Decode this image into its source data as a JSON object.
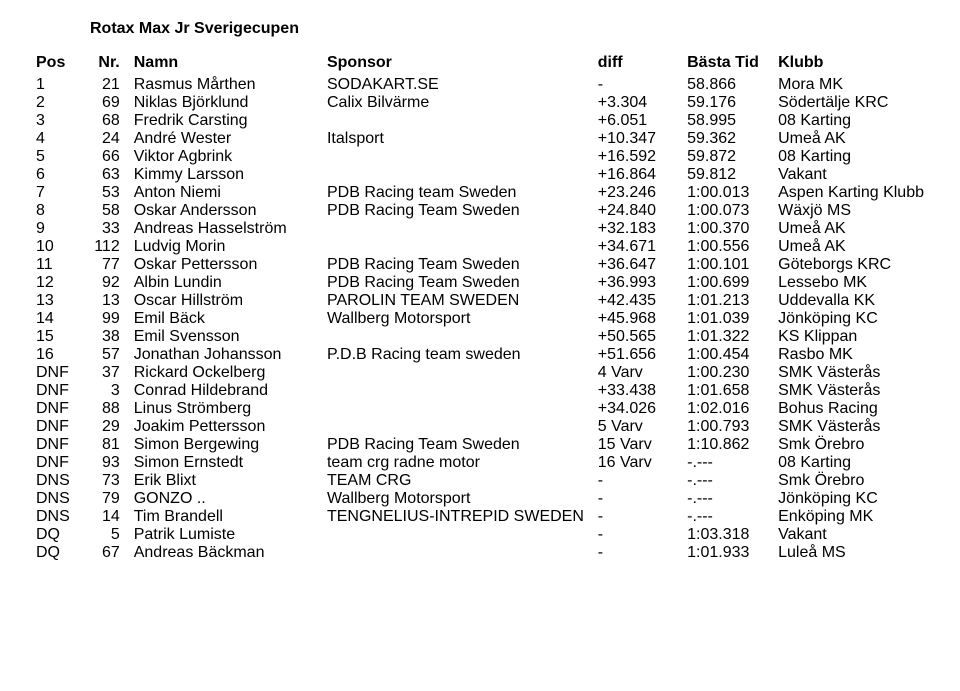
{
  "title": "Rotax Max Jr Sverigecupen",
  "headers": {
    "pos": "Pos",
    "nr": "Nr.",
    "namn": "Namn",
    "sponsor": "Sponsor",
    "diff": "diff",
    "tid": "Bästa Tid",
    "klubb": "Klubb"
  },
  "rows": [
    {
      "pos": "1",
      "nr": "21",
      "namn": "Rasmus Mårthen",
      "sponsor": "SODAKART.SE",
      "diff": "-",
      "tid": "58.866",
      "klubb": "Mora MK"
    },
    {
      "pos": "2",
      "nr": "69",
      "namn": "Niklas Björklund",
      "sponsor": "Calix Bilvärme",
      "diff": "+3.304",
      "tid": "59.176",
      "klubb": "Södertälje KRC"
    },
    {
      "pos": "3",
      "nr": "68",
      "namn": "Fredrik Carsting",
      "sponsor": "",
      "diff": "+6.051",
      "tid": "58.995",
      "klubb": "08 Karting"
    },
    {
      "pos": "4",
      "nr": "24",
      "namn": "André Wester",
      "sponsor": "Italsport",
      "diff": "+10.347",
      "tid": "59.362",
      "klubb": "Umeå AK"
    },
    {
      "pos": "5",
      "nr": "66",
      "namn": "Viktor Agbrink",
      "sponsor": "",
      "diff": "+16.592",
      "tid": "59.872",
      "klubb": "08 Karting"
    },
    {
      "pos": "6",
      "nr": "63",
      "namn": "Kimmy Larsson",
      "sponsor": "",
      "diff": "+16.864",
      "tid": "59.812",
      "klubb": "Vakant"
    },
    {
      "pos": "7",
      "nr": "53",
      "namn": "Anton Niemi",
      "sponsor": "PDB Racing team Sweden",
      "diff": "+23.246",
      "tid": "1:00.013",
      "klubb": "Aspen Karting Klubb"
    },
    {
      "pos": "8",
      "nr": "58",
      "namn": "Oskar Andersson",
      "sponsor": "PDB Racing Team Sweden",
      "diff": "+24.840",
      "tid": "1:00.073",
      "klubb": "Wäxjö MS"
    },
    {
      "pos": "9",
      "nr": "33",
      "namn": "Andreas Hasselström",
      "sponsor": "",
      "diff": "+32.183",
      "tid": "1:00.370",
      "klubb": "Umeå AK"
    },
    {
      "pos": "10",
      "nr": "112",
      "namn": "Ludvig Morin",
      "sponsor": "",
      "diff": "+34.671",
      "tid": "1:00.556",
      "klubb": "Umeå AK"
    },
    {
      "pos": "11",
      "nr": "77",
      "namn": "Oskar Pettersson",
      "sponsor": "PDB Racing Team Sweden",
      "diff": "+36.647",
      "tid": "1:00.101",
      "klubb": "Göteborgs KRC"
    },
    {
      "pos": "12",
      "nr": "92",
      "namn": "Albin Lundin",
      "sponsor": "PDB Racing Team Sweden",
      "diff": "+36.993",
      "tid": "1:00.699",
      "klubb": "Lessebo MK"
    },
    {
      "pos": "13",
      "nr": "13",
      "namn": "Oscar Hillström",
      "sponsor": "PAROLIN TEAM SWEDEN",
      "diff": "+42.435",
      "tid": "1:01.213",
      "klubb": "Uddevalla KK"
    },
    {
      "pos": "14",
      "nr": "99",
      "namn": "Emil Bäck",
      "sponsor": "Wallberg Motorsport",
      "diff": "+45.968",
      "tid": "1:01.039",
      "klubb": "Jönköping KC"
    },
    {
      "pos": "15",
      "nr": "38",
      "namn": "Emil Svensson",
      "sponsor": "",
      "diff": "+50.565",
      "tid": "1:01.322",
      "klubb": "KS Klippan"
    },
    {
      "pos": "16",
      "nr": "57",
      "namn": "Jonathan Johansson",
      "sponsor": "P.D.B Racing team sweden",
      "diff": "+51.656",
      "tid": "1:00.454",
      "klubb": "Rasbo MK"
    },
    {
      "pos": "DNF",
      "nr": "37",
      "namn": "Rickard Ockelberg",
      "sponsor": "",
      "diff": "4 Varv",
      "tid": "1:00.230",
      "klubb": "SMK Västerås"
    },
    {
      "pos": "DNF",
      "nr": "3",
      "namn": "Conrad Hildebrand",
      "sponsor": "",
      "diff": "+33.438",
      "tid": "1:01.658",
      "klubb": "SMK Västerås"
    },
    {
      "pos": "DNF",
      "nr": "88",
      "namn": "Linus Strömberg",
      "sponsor": "",
      "diff": "+34.026",
      "tid": "1:02.016",
      "klubb": "Bohus Racing"
    },
    {
      "pos": "DNF",
      "nr": "29",
      "namn": "Joakim Pettersson",
      "sponsor": "",
      "diff": "5 Varv",
      "tid": "1:00.793",
      "klubb": "SMK Västerås"
    },
    {
      "pos": "DNF",
      "nr": "81",
      "namn": "Simon Bergewing",
      "sponsor": "PDB Racing Team Sweden",
      "diff": "15 Varv",
      "tid": "1:10.862",
      "klubb": "Smk Örebro"
    },
    {
      "pos": "DNF",
      "nr": "93",
      "namn": "Simon Ernstedt",
      "sponsor": "team crg radne motor",
      "diff": "16 Varv",
      "tid": "-.---",
      "klubb": "08 Karting"
    },
    {
      "pos": "DNS",
      "nr": "73",
      "namn": "Erik Blixt",
      "sponsor": "TEAM CRG",
      "diff": "-",
      "tid": "-.---",
      "klubb": "Smk Örebro"
    },
    {
      "pos": "DNS",
      "nr": "79",
      "namn": "GONZO ..",
      "sponsor": "Wallberg Motorsport",
      "diff": "-",
      "tid": "-.---",
      "klubb": "Jönköping KC"
    },
    {
      "pos": "DNS",
      "nr": "14",
      "namn": "Tim Brandell",
      "sponsor": "TENGNELIUS-INTREPID SWEDEN",
      "diff": "-",
      "tid": "-.---",
      "klubb": "Enköping MK"
    },
    {
      "pos": "DQ",
      "nr": "5",
      "namn": "Patrik Lumiste",
      "sponsor": "",
      "diff": "-",
      "tid": "1:03.318",
      "klubb": "Vakant"
    },
    {
      "pos": "DQ",
      "nr": "67",
      "namn": "Andreas Bäckman",
      "sponsor": "",
      "diff": "-",
      "tid": "1:01.933",
      "klubb": "Luleå MS"
    }
  ]
}
